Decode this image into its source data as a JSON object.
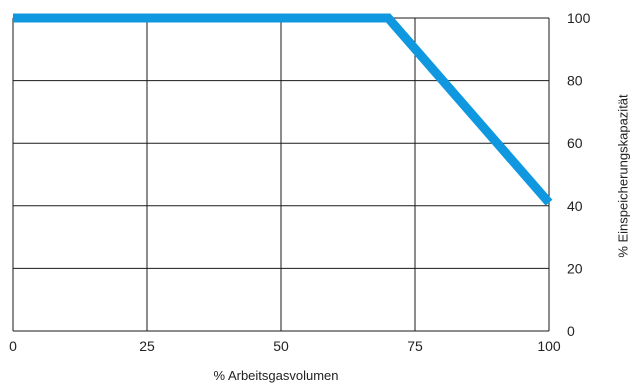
{
  "chart_data": {
    "type": "line",
    "title": "",
    "xlabel": "% Arbeitsgasvolumen",
    "ylabel": "% Einspeicherungskapazität",
    "x_ticks": [
      "0",
      "25",
      "50",
      "75",
      "100"
    ],
    "y_ticks": [
      "0",
      "20",
      "40",
      "60",
      "80",
      "100"
    ],
    "xlim": [
      0,
      100
    ],
    "ylim": [
      0,
      100
    ],
    "x_tick_values": [
      0,
      25,
      50,
      75,
      100
    ],
    "y_tick_values": [
      0,
      20,
      40,
      60,
      80,
      100
    ],
    "y_axis_side": "right",
    "grid": true,
    "legend": "none",
    "series": [
      {
        "color": "#0f98e0",
        "x": [
          0,
          70,
          100
        ],
        "y": [
          100,
          100,
          41
        ]
      }
    ]
  },
  "colors": {
    "grid": "#1a1a1a",
    "text": "#222222",
    "background": "#ffffff"
  }
}
